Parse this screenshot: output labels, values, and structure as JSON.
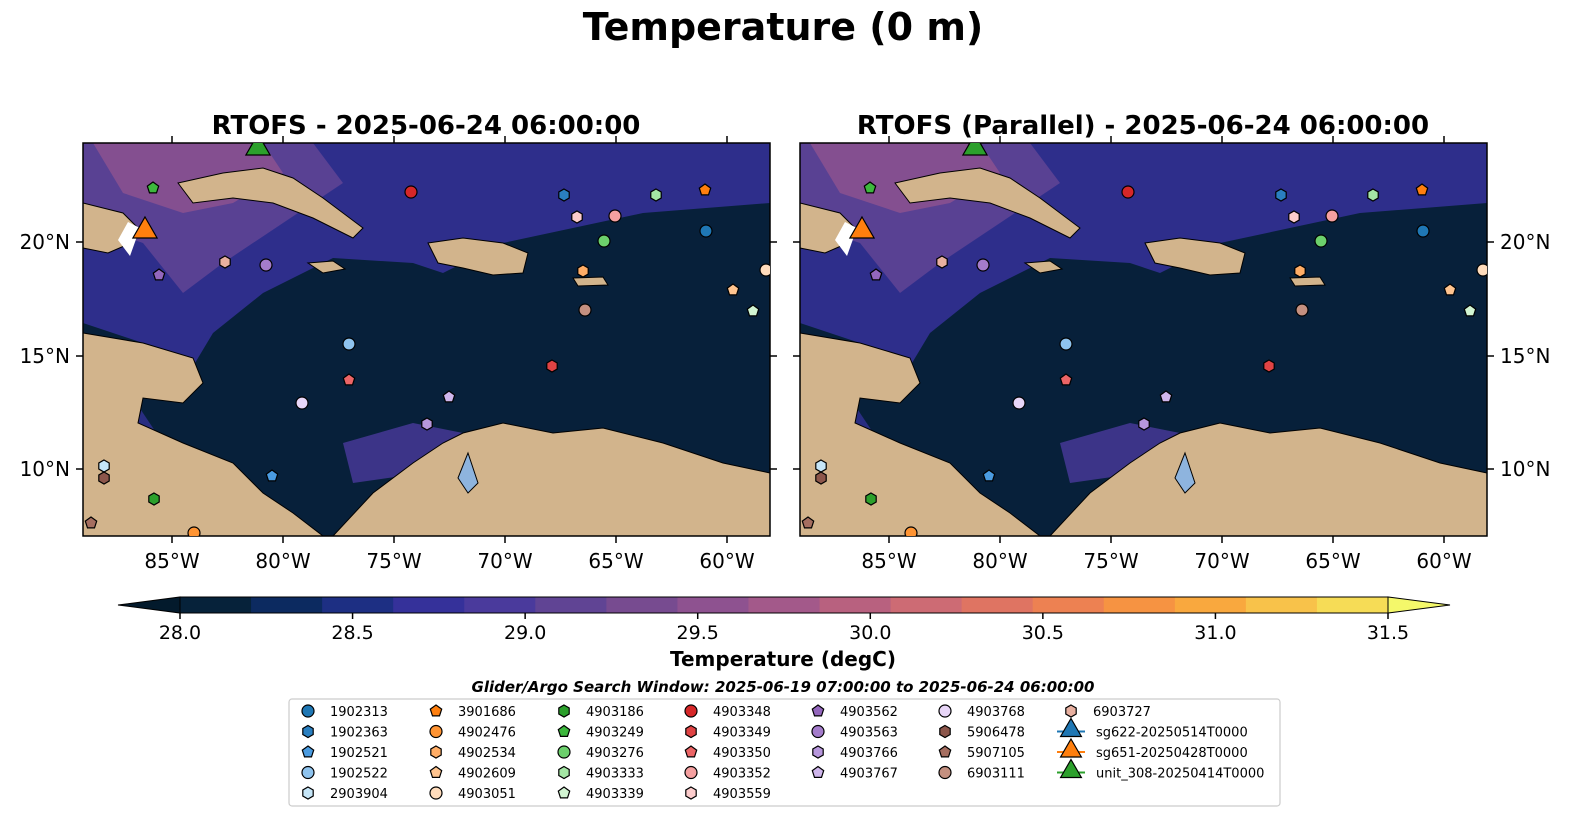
{
  "figure": {
    "suptitle": "Temperature (0 m)",
    "panels": [
      {
        "title": "RTOFS - 2025-06-24 06:00:00"
      },
      {
        "title": "RTOFS (Parallel) - 2025-06-24 06:00:00"
      }
    ],
    "colorbar": {
      "label": "Temperature (degC)",
      "min": 28.0,
      "max": 31.5,
      "ticks": [
        "28.0",
        "28.5",
        "29.0",
        "29.5",
        "30.0",
        "30.5",
        "31.0",
        "31.5"
      ],
      "colors": [
        "#06223a",
        "#0c2a60",
        "#1d2f83",
        "#35319a",
        "#4a3a9c",
        "#604494",
        "#774b90",
        "#8e5290",
        "#a3598a",
        "#b8617f",
        "#cd6b74",
        "#df7462",
        "#ed8152",
        "#f69342",
        "#f9a83e",
        "#f8c24a",
        "#f6dc56"
      ],
      "under_color": "#031a2c",
      "over_color": "#f4f86a"
    },
    "axes": {
      "lon_ticks": [
        "85°W",
        "80°W",
        "75°W",
        "70°W",
        "65°W",
        "60°W"
      ],
      "lat_ticks": [
        "20°N",
        "15°N",
        "10°N"
      ]
    },
    "legend": {
      "title": "Glider/Argo Search Window: 2025-06-19 07:00:00 to 2025-06-24 06:00:00",
      "columns": [
        [
          {
            "label": "1902313",
            "color": "#1f77b4",
            "shape": "circle"
          },
          {
            "label": "1902363",
            "color": "#2a7fc0",
            "shape": "hexagon"
          },
          {
            "label": "1902521",
            "color": "#4a9be0",
            "shape": "pentagon"
          },
          {
            "label": "1902522",
            "color": "#8ec3ee",
            "shape": "circle"
          },
          {
            "label": "2903904",
            "color": "#c6e6f8",
            "shape": "hexagon"
          }
        ],
        [
          {
            "label": "3901686",
            "color": "#ff7f0e",
            "shape": "pentagon"
          },
          {
            "label": "4902476",
            "color": "#ff9433",
            "shape": "circle"
          },
          {
            "label": "4902534",
            "color": "#ffad66",
            "shape": "hexagon"
          },
          {
            "label": "4902609",
            "color": "#ffc48f",
            "shape": "pentagon"
          },
          {
            "label": "4903051",
            "color": "#ffdcbc",
            "shape": "circle"
          }
        ],
        [
          {
            "label": "4903186",
            "color": "#2ca02c",
            "shape": "hexagon"
          },
          {
            "label": "4903249",
            "color": "#3db83d",
            "shape": "pentagon"
          },
          {
            "label": "4903276",
            "color": "#6cd06c",
            "shape": "circle"
          },
          {
            "label": "4903333",
            "color": "#a4e6a4",
            "shape": "hexagon"
          },
          {
            "label": "4903339",
            "color": "#d2f5d2",
            "shape": "pentagon"
          }
        ],
        [
          {
            "label": "4903348",
            "color": "#d62728",
            "shape": "circle"
          },
          {
            "label": "4903349",
            "color": "#e04344",
            "shape": "hexagon"
          },
          {
            "label": "4903350",
            "color": "#ec6566",
            "shape": "pentagon"
          },
          {
            "label": "4903352",
            "color": "#f5a0a0",
            "shape": "circle"
          },
          {
            "label": "4903559",
            "color": "#fccccc",
            "shape": "hexagon"
          }
        ],
        [
          {
            "label": "4903562",
            "color": "#9467bd",
            "shape": "pentagon"
          },
          {
            "label": "4903563",
            "color": "#a47ccb",
            "shape": "circle"
          },
          {
            "label": "4903766",
            "color": "#b797dc",
            "shape": "hexagon"
          },
          {
            "label": "4903767",
            "color": "#cfb6ec",
            "shape": "pentagon"
          }
        ],
        [
          {
            "label": "4903768",
            "color": "#e8d6f8",
            "shape": "circle"
          },
          {
            "label": "5906478",
            "color": "#8c564b",
            "shape": "hexagon"
          },
          {
            "label": "5907105",
            "color": "#a56e60",
            "shape": "pentagon"
          },
          {
            "label": "6903111",
            "color": "#c49080",
            "shape": "circle"
          }
        ],
        [
          {
            "label": "6903727",
            "color": "#e8b0a0",
            "shape": "hexagon"
          },
          {
            "label": "sg622-20250514T0000",
            "color": "#1f77b4",
            "shape": "triangle"
          },
          {
            "label": "sg651-20250428T0000",
            "color": "#ff7f0e",
            "shape": "triangle"
          },
          {
            "label": "unit_308-20250414T0000",
            "color": "#2ca02c",
            "shape": "triangle"
          }
        ]
      ]
    }
  }
}
